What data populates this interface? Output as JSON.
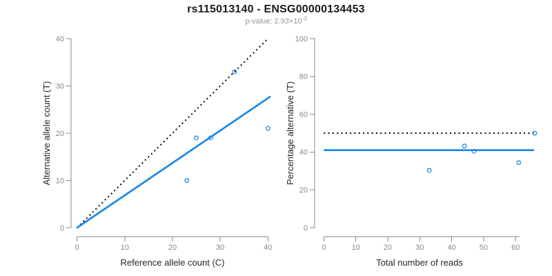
{
  "header": {
    "title": "rs115013140 - ENSG00000134453",
    "subtitle_label": "p-value: ",
    "subtitle_value": "2.93×10",
    "subtitle_exponent": "-3"
  },
  "colors": {
    "point_blue": "#1E8BE8",
    "fit_blue": "#1E8BE8",
    "reference_black": "#000000",
    "axis_gray": "#878787",
    "tick_label_gray": "#878787",
    "axis_title_color": "#262626",
    "title_color": "#1A1A1A",
    "subtitle_gray": "#949494"
  },
  "chart_data": [
    {
      "name": "allele-counts-scatter",
      "type": "scatter",
      "xlabel": "Reference allele count (C)",
      "ylabel": "Alternative allele count (T)",
      "xlim": [
        0,
        40
      ],
      "ylim": [
        0,
        40
      ],
      "xticks": [
        0,
        10,
        20,
        30,
        40
      ],
      "yticks": [
        0,
        10,
        20,
        30,
        40
      ],
      "grid": false,
      "legend": null,
      "points": [
        [
          23,
          10
        ],
        [
          25,
          19
        ],
        [
          28,
          19
        ],
        [
          33,
          33
        ],
        [
          40,
          21
        ]
      ],
      "lines": [
        {
          "name": "identity-line",
          "kind": "abline",
          "intercept": 0,
          "slope": 1,
          "xspan": [
            0,
            40
          ],
          "style": "dotted",
          "color": "#000000"
        },
        {
          "name": "fit-line",
          "kind": "abline",
          "intercept": 0,
          "slope": 0.685,
          "xspan": [
            -0.1,
            40.55
          ],
          "style": "solid",
          "color": "#1E8BE8"
        }
      ]
    },
    {
      "name": "percentage-scatter",
      "type": "scatter",
      "xlabel": "Total number of reads",
      "ylabel": "Percentage alternative (T)",
      "xlim": [
        0,
        66
      ],
      "ylim": [
        0,
        100
      ],
      "xticks": [
        0,
        10,
        20,
        30,
        40,
        50,
        60
      ],
      "yticks": [
        0,
        20,
        40,
        60,
        80,
        100
      ],
      "grid": false,
      "legend": null,
      "points": [
        [
          33,
          30.3
        ],
        [
          44,
          43.2
        ],
        [
          47,
          40.4
        ],
        [
          61,
          34.4
        ],
        [
          66,
          50
        ]
      ],
      "lines": [
        {
          "name": "expected-50-line",
          "kind": "hline",
          "y": 50,
          "xspan": [
            0,
            66.2
          ],
          "style": "dotted",
          "color": "#000000"
        },
        {
          "name": "mean-percentage-line",
          "kind": "hline",
          "y": 41,
          "xspan": [
            0,
            65.8
          ],
          "style": "solid",
          "color": "#1E8BE8"
        }
      ]
    }
  ]
}
